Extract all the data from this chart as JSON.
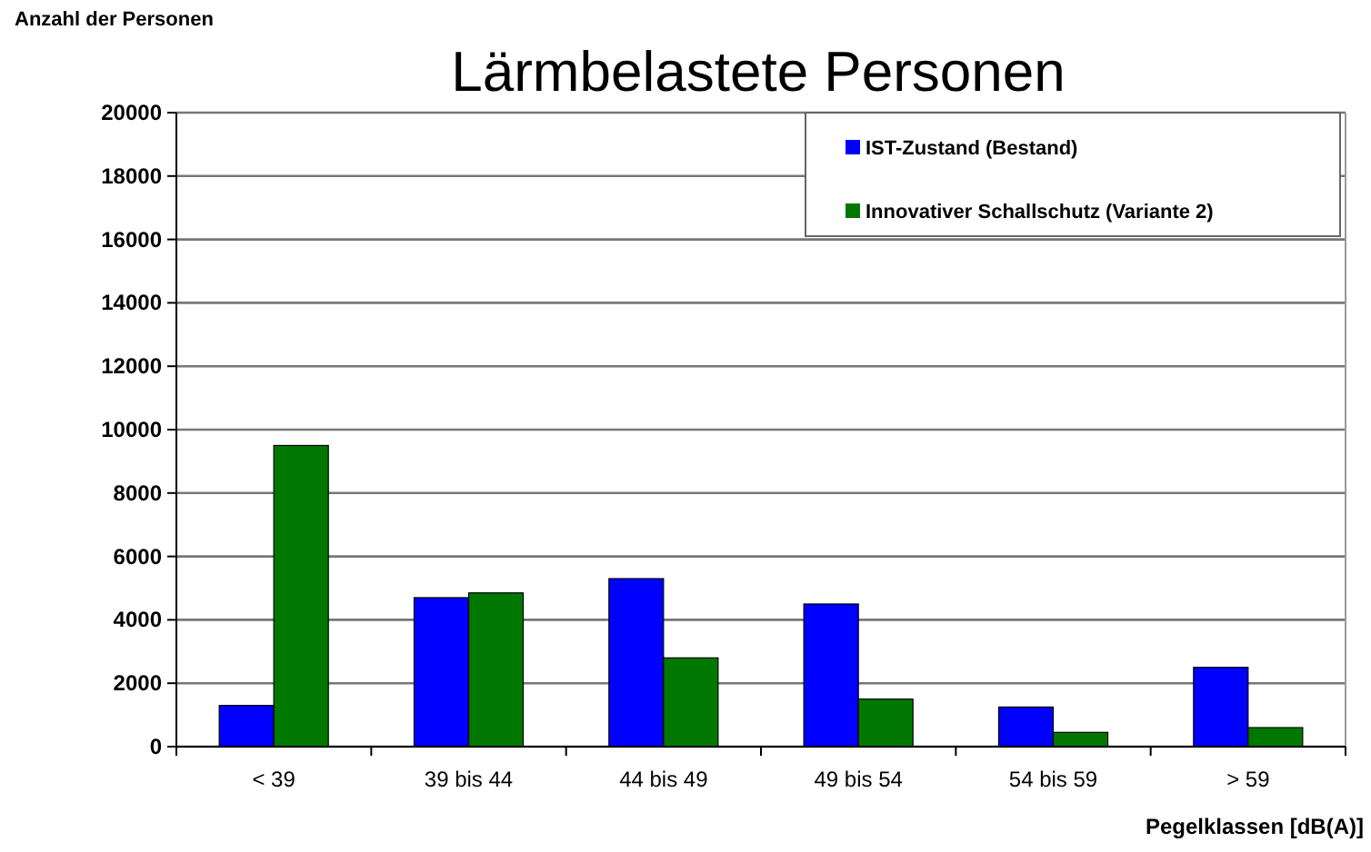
{
  "chart_data": {
    "type": "bar",
    "title": "Lärmbelastete Personen",
    "ylabel": "Anzahl der Personen",
    "xlabel": "Pegelklassen [dB(A)]",
    "categories": [
      "< 39",
      "39 bis 44",
      "44 bis 49",
      "49 bis 54",
      "54 bis 59",
      "> 59"
    ],
    "series": [
      {
        "name": "IST-Zustand (Bestand)",
        "color": "#0000ff",
        "values": [
          1300,
          4700,
          5300,
          4500,
          1250,
          2500
        ]
      },
      {
        "name": "Innovativer Schallschutz (Variante 2)",
        "color": "#007800",
        "values": [
          9500,
          4850,
          2800,
          1500,
          450,
          600
        ]
      }
    ],
    "ylim": [
      0,
      20000
    ],
    "yticks": [
      0,
      2000,
      4000,
      6000,
      8000,
      10000,
      12000,
      14000,
      16000,
      18000,
      20000
    ],
    "grid": "y",
    "legend": "top right"
  }
}
